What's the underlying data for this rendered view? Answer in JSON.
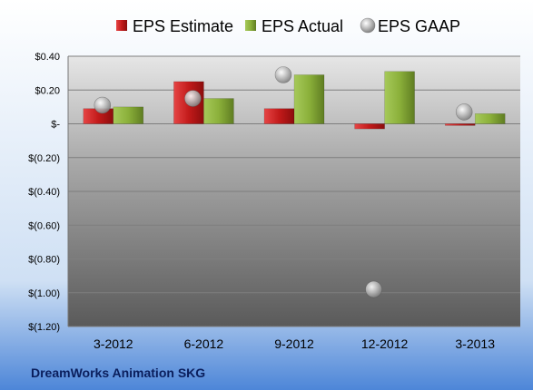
{
  "chart_data": {
    "type": "bar",
    "categories": [
      "3-2012",
      "6-2012",
      "9-2012",
      "12-2012",
      "3-2013"
    ],
    "series": [
      {
        "name": "EPS Estimate",
        "kind": "bar",
        "color": "#cc1f1f",
        "values": [
          0.09,
          0.25,
          0.09,
          -0.03,
          -0.01
        ]
      },
      {
        "name": "EPS Actual",
        "kind": "bar",
        "color": "#8bb03a",
        "values": [
          0.1,
          0.15,
          0.29,
          0.31,
          0.06
        ]
      },
      {
        "name": "EPS GAAP",
        "kind": "marker",
        "color": "#b8b8b8",
        "values": [
          0.11,
          0.15,
          0.29,
          -0.98,
          0.07
        ]
      }
    ],
    "y_ticks": [
      0.4,
      0.2,
      0,
      -0.2,
      -0.4,
      -0.6,
      -0.8,
      -1.0,
      -1.2
    ],
    "y_tick_labels": [
      "$0.40",
      "$0.20",
      "$-",
      "$(0.20)",
      "$(0.40)",
      "$(0.60)",
      "$(0.80)",
      "$(1.00)",
      "$(1.20)"
    ],
    "ylim": [
      -1.2,
      0.4
    ],
    "grid": true,
    "legend_position": "top",
    "caption": "DreamWorks Animation SKG"
  }
}
